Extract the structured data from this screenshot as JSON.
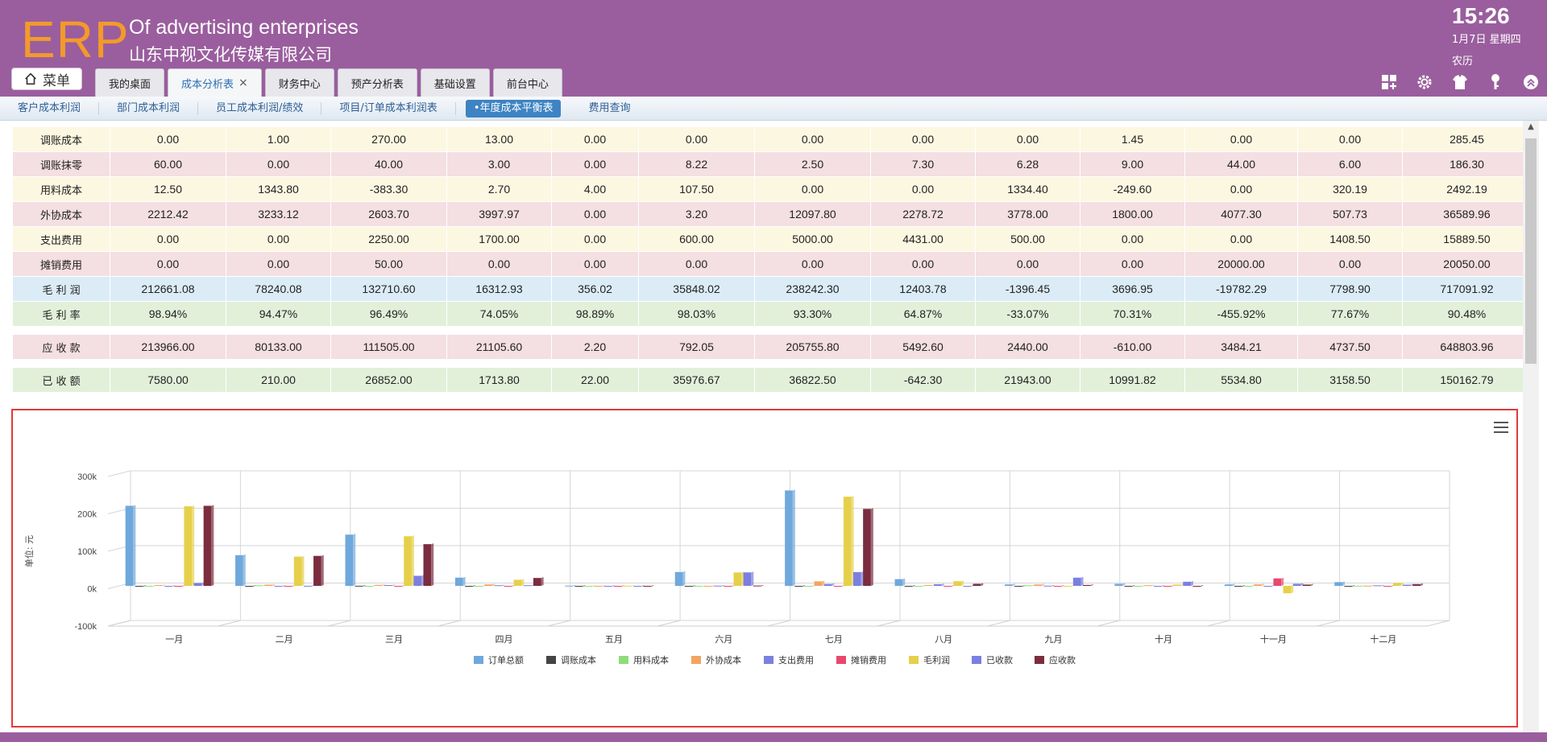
{
  "header": {
    "logo": "ERP",
    "app_title": "Of advertising enterprises",
    "company": "山东中视文化传媒有限公司",
    "time": "15:26",
    "date": "1月7日 星期四",
    "lunar": "农历",
    "menu_label": "菜单"
  },
  "tabs": [
    {
      "label": "我的桌面",
      "active": false
    },
    {
      "label": "成本分析表",
      "active": true,
      "closable": true
    },
    {
      "label": "财务中心",
      "active": false
    },
    {
      "label": "预产分析表",
      "active": false
    },
    {
      "label": "基础设置",
      "active": false
    },
    {
      "label": "前台中心",
      "active": false
    }
  ],
  "header_icons": [
    "grid-add-icon",
    "gear-icon",
    "shirt-icon",
    "key-icon",
    "collapse-icon"
  ],
  "subnav": [
    {
      "label": "客户成本利润",
      "active": false
    },
    {
      "label": "部门成本利润",
      "active": false
    },
    {
      "label": "员工成本利润/绩效",
      "active": false
    },
    {
      "label": "项目/订单成本利润表",
      "active": false
    },
    {
      "label": "•年度成本平衡表",
      "active": true
    },
    {
      "label": "费用查询",
      "active": false
    }
  ],
  "table": {
    "rows": [
      {
        "label": "调账成本",
        "color": "yellow",
        "values": [
          "0.00",
          "1.00",
          "270.00",
          "13.00",
          "0.00",
          "0.00",
          "0.00",
          "0.00",
          "0.00",
          "1.45",
          "0.00",
          "0.00",
          "285.45"
        ]
      },
      {
        "label": "调账抹零",
        "color": "pink",
        "values": [
          "60.00",
          "0.00",
          "40.00",
          "3.00",
          "0.00",
          "8.22",
          "2.50",
          "7.30",
          "6.28",
          "9.00",
          "44.00",
          "6.00",
          "186.30"
        ]
      },
      {
        "label": "用料成本",
        "color": "yellow",
        "values": [
          "12.50",
          "1343.80",
          "-383.30",
          "2.70",
          "4.00",
          "107.50",
          "0.00",
          "0.00",
          "1334.40",
          "-249.60",
          "0.00",
          "320.19",
          "2492.19"
        ]
      },
      {
        "label": "外协成本",
        "color": "pink",
        "values": [
          "2212.42",
          "3233.12",
          "2603.70",
          "3997.97",
          "0.00",
          "3.20",
          "12097.80",
          "2278.72",
          "3778.00",
          "1800.00",
          "4077.30",
          "507.73",
          "36589.96"
        ]
      },
      {
        "label": "支出费用",
        "color": "yellow",
        "values": [
          "0.00",
          "0.00",
          "2250.00",
          "1700.00",
          "0.00",
          "600.00",
          "5000.00",
          "4431.00",
          "500.00",
          "0.00",
          "0.00",
          "1408.50",
          "15889.50"
        ]
      },
      {
        "label": "摊销费用",
        "color": "pink",
        "values": [
          "0.00",
          "0.00",
          "50.00",
          "0.00",
          "0.00",
          "0.00",
          "0.00",
          "0.00",
          "0.00",
          "0.00",
          "20000.00",
          "0.00",
          "20050.00"
        ]
      },
      {
        "label": "毛 利 润",
        "color": "blue",
        "values": [
          "212661.08",
          "78240.08",
          "132710.60",
          "16312.93",
          "356.02",
          "35848.02",
          "238242.30",
          "12403.78",
          "-1396.45",
          "3696.95",
          "-19782.29",
          "7798.90",
          "717091.92"
        ]
      },
      {
        "label": "毛 利 率",
        "color": "green",
        "values": [
          "98.94%",
          "94.47%",
          "96.49%",
          "74.05%",
          "98.89%",
          "98.03%",
          "93.30%",
          "64.87%",
          "-33.07%",
          "70.31%",
          "-455.92%",
          "77.67%",
          "90.48%"
        ]
      },
      {
        "spacer": true
      },
      {
        "label": "应 收 款",
        "color": "pink",
        "values": [
          "213966.00",
          "80133.00",
          "111505.00",
          "21105.60",
          "2.20",
          "792.05",
          "205755.80",
          "5492.60",
          "2440.00",
          "-610.00",
          "3484.21",
          "4737.50",
          "648803.96"
        ]
      },
      {
        "spacer": true
      },
      {
        "label": "已 收 额",
        "color": "green",
        "values": [
          "7580.00",
          "210.00",
          "26852.00",
          "1713.80",
          "22.00",
          "35976.67",
          "36822.50",
          "-642.30",
          "21943.00",
          "10991.82",
          "5534.80",
          "3158.50",
          "150162.79"
        ]
      }
    ]
  },
  "chart_data": {
    "type": "bar",
    "ylabel": "单位: 元",
    "ylim": [
      -100000,
      300000
    ],
    "yticks": [
      "-100k",
      "0k",
      "100k",
      "200k",
      "300k"
    ],
    "ytick_values": [
      -100000,
      0,
      100000,
      200000,
      300000
    ],
    "grid": true,
    "legend": "bottom",
    "categories": [
      "一月",
      "二月",
      "三月",
      "四月",
      "五月",
      "六月",
      "七月",
      "八月",
      "九月",
      "十月",
      "十一月",
      "十二月"
    ],
    "series": [
      {
        "name": "订单总额",
        "color": "#6fa8dc",
        "values": [
          214000,
          82000,
          137000,
          22000,
          600,
          37000,
          255000,
          18000,
          4000,
          5500,
          4000,
          10000
        ]
      },
      {
        "name": "调账成本",
        "color": "#444444",
        "values": [
          0,
          1,
          270,
          13,
          0,
          0,
          0,
          0,
          0,
          1.45,
          0,
          0
        ]
      },
      {
        "name": "用料成本",
        "color": "#8fdc7a",
        "values": [
          12.5,
          1343.8,
          -383.3,
          2.7,
          4,
          107.5,
          0,
          0,
          1334.4,
          -249.6,
          0,
          320.19
        ]
      },
      {
        "name": "外协成本",
        "color": "#f4a460",
        "values": [
          2212.42,
          3233.12,
          2603.7,
          3997.97,
          0,
          3.2,
          12097.8,
          2278.72,
          3778,
          1800,
          4077.3,
          507.73
        ]
      },
      {
        "name": "支出费用",
        "color": "#7b7fe0",
        "values": [
          0,
          0,
          2250,
          1700,
          0,
          600,
          5000,
          4431,
          500,
          0,
          0,
          1408.5
        ]
      },
      {
        "name": "摊销费用",
        "color": "#e8486e",
        "values": [
          0,
          0,
          50,
          0,
          0,
          0,
          0,
          0,
          0,
          0,
          20000,
          0
        ]
      },
      {
        "name": "毛利润",
        "color": "#e6d04a",
        "values": [
          212661.08,
          78240.08,
          132710.6,
          16312.93,
          356.02,
          35848.02,
          238242.3,
          12403.78,
          -1396.45,
          3696.95,
          -19782.29,
          7798.9
        ]
      },
      {
        "name": "已收款",
        "color": "#7b7fe0",
        "values": [
          7580,
          210,
          26852,
          1713.8,
          22,
          35976.67,
          36822.5,
          -642.3,
          21943,
          10991.82,
          5534.8,
          3158.5
        ]
      },
      {
        "name": "应收款",
        "color": "#7b2c3f",
        "values": [
          213966,
          80133,
          111505,
          21105.6,
          2.2,
          792.05,
          205755.8,
          5492.6,
          2440,
          -610,
          3484.21,
          4737.5
        ]
      }
    ]
  }
}
